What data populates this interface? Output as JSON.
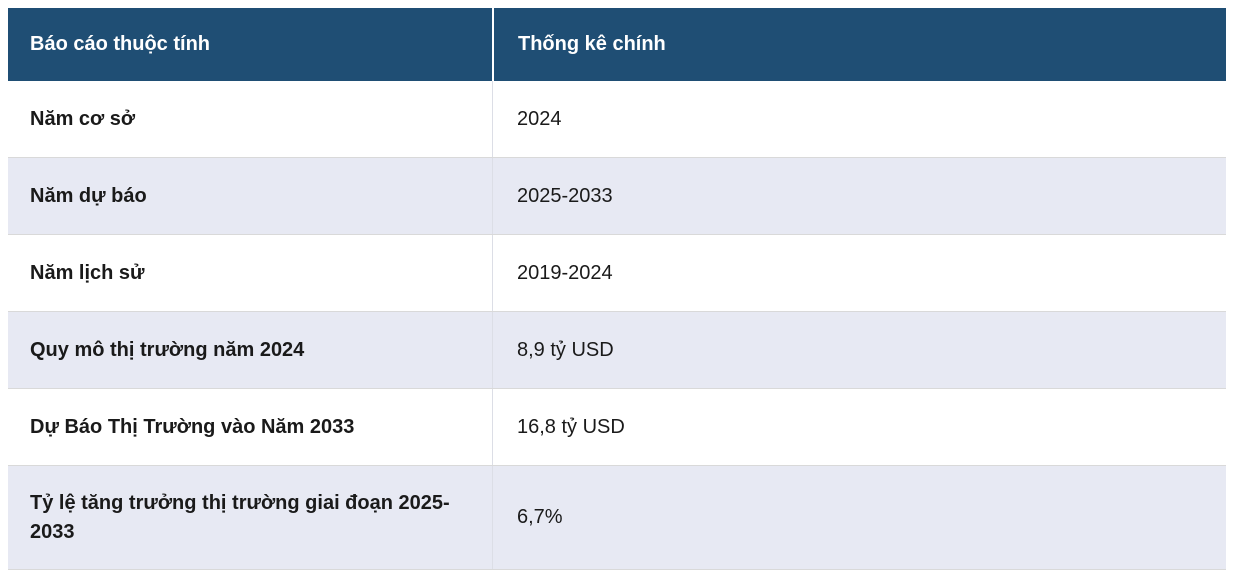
{
  "colors": {
    "header_bg": "#1f4e74",
    "header_text": "#ffffff",
    "row_bg": "#ffffff",
    "row_alt_bg": "#e7e9f3",
    "row_border": "#d9d9d9",
    "body_text": "#1a1a1a"
  },
  "table": {
    "columns": [
      {
        "label": "Báo cáo thuộc tính"
      },
      {
        "label": "Thống kê chính"
      }
    ],
    "rows": [
      {
        "attribute": "Năm cơ sở",
        "value": "2024"
      },
      {
        "attribute": "Năm dự báo",
        "value": "2025-2033"
      },
      {
        "attribute": "Năm lịch sử",
        "value": "2019-2024"
      },
      {
        "attribute": "Quy mô thị trường năm 2024",
        "value": "8,9 tỷ USD"
      },
      {
        "attribute": "Dự Báo Thị Trường vào Năm 2033",
        "value": "16,8 tỷ USD"
      },
      {
        "attribute": "Tỷ lệ tăng trưởng thị trường giai đoạn 2025-2033",
        "value": "6,7%"
      }
    ]
  }
}
